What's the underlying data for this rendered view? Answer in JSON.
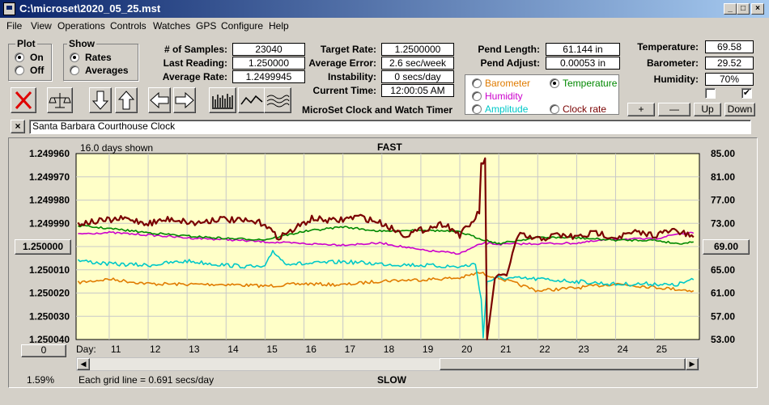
{
  "window": {
    "title": "C:\\microset\\2020_05_25.mst",
    "min": "_",
    "max": "□",
    "close": "×"
  },
  "menu": [
    "File",
    "View",
    "Operations",
    "Controls",
    "Watches",
    "GPS",
    "Configure",
    "Help"
  ],
  "plot_group": {
    "title": "Plot",
    "options": [
      "On",
      "Off"
    ]
  },
  "show_group": {
    "title": "Show",
    "options": [
      "Rates",
      "Averages"
    ]
  },
  "stats": {
    "samples_label": "# of Samples:",
    "samples": "23040",
    "last_label": "Last Reading:",
    "last": "1.250000",
    "avg_label": "Average Rate:",
    "avg": "1.2499945"
  },
  "target": {
    "rate_label": "Target Rate:",
    "rate": "1.2500000",
    "err_label": "Average Error:",
    "err": "2.6 sec/week",
    "inst_label": "Instability:",
    "inst": "0 secs/day",
    "time_label": "Current Time:",
    "time": "12:00:05 AM"
  },
  "app_caption": "MicroSet Clock and Watch Timer",
  "pendulum": {
    "len_label": "Pend Length:",
    "len": "61.144 in",
    "adj_label": "Pend Adjust:",
    "adj": "0.00053 in"
  },
  "sensors": {
    "temp_label": "Temperature:",
    "temp": "69.58",
    "baro_label": "Barometer:",
    "baro": "29.52",
    "hum_label": "Humidity:",
    "hum": "70%"
  },
  "channels": [
    {
      "label": "Barometer",
      "color": "#e07b00"
    },
    {
      "label": "Temperature",
      "color": "#008800",
      "selected": true
    },
    {
      "label": "Humidity",
      "color": "#cc00cc"
    },
    {
      "label": "Clock rate",
      "color": "#7a0000"
    },
    {
      "label": "Amplitude",
      "color": "#00c8c8"
    }
  ],
  "scale_buttons": [
    "+",
    "—",
    "Up",
    "Down"
  ],
  "close_x": "×",
  "watch_name": "Santa Barbara Courthouse Clock",
  "chart": {
    "days_shown": "16.0 days shown",
    "top_label": "FAST",
    "bottom_label": "SLOW",
    "grid_note": "Each grid line = 0.691 secs/day",
    "day_label": "Day:",
    "zoom_pct": "1.59%",
    "left_button": "1.250000",
    "right_button": "69.00",
    "bottom_button": "0"
  },
  "chart_data": {
    "type": "line",
    "x_label": "Day:",
    "x_ticks": [
      11,
      12,
      13,
      14,
      15,
      16,
      17,
      18,
      19,
      20,
      21,
      22,
      23,
      24,
      25
    ],
    "x_range": [
      10.15,
      26.15
    ],
    "y_left_ticks": [
      "1.249960",
      "1.249970",
      "1.249980",
      "1.249990",
      "1.250000",
      "1.250010",
      "1.250020",
      "1.250030",
      "1.250040"
    ],
    "y_left_range": [
      1.24996,
      1.25004
    ],
    "y_right_ticks": [
      "85.00",
      "81.00",
      "77.00",
      "73.00",
      "69.00",
      "65.00",
      "61.00",
      "57.00",
      "53.00"
    ],
    "y_right_range": [
      53,
      85
    ],
    "series": [
      {
        "name": "Clock rate",
        "color": "#7a0000",
        "axis": "left",
        "points": [
          [
            10.2,
            1.24999
          ],
          [
            10.8,
            1.249989
          ],
          [
            11.4,
            1.249988
          ],
          [
            12,
            1.24999
          ],
          [
            12.6,
            1.249988
          ],
          [
            13.2,
            1.24999
          ],
          [
            13.8,
            1.249988
          ],
          [
            14.4,
            1.249989
          ],
          [
            15,
            1.24999
          ],
          [
            15.3,
            1.249996
          ],
          [
            15.6,
            1.249994
          ],
          [
            16.2,
            1.249988
          ],
          [
            16.8,
            1.249989
          ],
          [
            17.4,
            1.249987
          ],
          [
            18,
            1.24999
          ],
          [
            18.6,
            1.249995
          ],
          [
            19,
            1.249993
          ],
          [
            19.6,
            1.24999
          ],
          [
            20,
            1.249995
          ],
          [
            20.3,
            1.24999
          ],
          [
            20.5,
            1.249985
          ],
          [
            20.55,
            1.249965
          ],
          [
            20.65,
            1.249962
          ],
          [
            20.7,
            1.25004
          ],
          [
            20.9,
            1.250014
          ],
          [
            21.2,
            1.250012
          ],
          [
            21.5,
            1.249995
          ],
          [
            22,
            1.249997
          ],
          [
            22.5,
            1.249995
          ],
          [
            23,
            1.249996
          ],
          [
            23.5,
            1.249994
          ],
          [
            24,
            1.249996
          ],
          [
            24.5,
            1.249994
          ],
          [
            25,
            1.249995
          ],
          [
            25.5,
            1.249993
          ],
          [
            26,
            1.249996
          ]
        ]
      },
      {
        "name": "Temperature",
        "color": "#008800",
        "axis": "right",
        "points": [
          [
            10.2,
            72.6
          ],
          [
            11,
            72.1
          ],
          [
            12,
            71.4
          ],
          [
            13,
            70.8
          ],
          [
            14,
            70.4
          ],
          [
            15,
            70.2
          ],
          [
            16,
            71.6
          ],
          [
            17,
            72.4
          ],
          [
            18,
            71.6
          ],
          [
            19,
            71.9
          ],
          [
            20,
            71.5
          ],
          [
            20.5,
            70.4
          ],
          [
            21,
            69.5
          ],
          [
            22,
            70.6
          ],
          [
            23,
            70.5
          ],
          [
            24,
            70.1
          ],
          [
            25,
            70.1
          ],
          [
            25.6,
            69.5
          ],
          [
            26,
            69.8
          ]
        ]
      },
      {
        "name": "Humidity",
        "color": "#cc00cc",
        "axis": "right",
        "points": [
          [
            10.2,
            71.2
          ],
          [
            11,
            71.4
          ],
          [
            12,
            71.0
          ],
          [
            13,
            70.5
          ],
          [
            14,
            70.2
          ],
          [
            15,
            69.8
          ],
          [
            16,
            69.5
          ],
          [
            17,
            69.3
          ],
          [
            18,
            69.6
          ],
          [
            19,
            68.4
          ],
          [
            20,
            67.8
          ],
          [
            20.6,
            69.6
          ],
          [
            21,
            69.4
          ],
          [
            22,
            69.5
          ],
          [
            23,
            69.6
          ],
          [
            24,
            70.3
          ],
          [
            25,
            70.3
          ],
          [
            25.6,
            71.2
          ],
          [
            26,
            71.3
          ]
        ]
      },
      {
        "name": "Amplitude",
        "color": "#00c8c8",
        "axis": "right",
        "points": [
          [
            10.2,
            66.6
          ],
          [
            11,
            66.0
          ],
          [
            12,
            65.8
          ],
          [
            13,
            66.5
          ],
          [
            14,
            65.8
          ],
          [
            15,
            65.4
          ],
          [
            15.2,
            68.3
          ],
          [
            15.5,
            66.2
          ],
          [
            16,
            66.0
          ],
          [
            17,
            66.4
          ],
          [
            18,
            66.0
          ],
          [
            19,
            65.8
          ],
          [
            20,
            65.5
          ],
          [
            20.4,
            66.0
          ],
          [
            20.55,
            60.0
          ],
          [
            20.6,
            53.3
          ],
          [
            20.7,
            63.0
          ],
          [
            21,
            63.6
          ],
          [
            22,
            63.4
          ],
          [
            23,
            63.0
          ],
          [
            24,
            62.5
          ],
          [
            25,
            62.6
          ],
          [
            25.5,
            62.3
          ],
          [
            26,
            63.3
          ]
        ]
      },
      {
        "name": "Barometer",
        "color": "#e07b00",
        "axis": "right",
        "points": [
          [
            10.2,
            62.8
          ],
          [
            11,
            63.4
          ],
          [
            12,
            62.6
          ],
          [
            13,
            62.5
          ],
          [
            14,
            62.5
          ],
          [
            15,
            62.2
          ],
          [
            16,
            62.6
          ],
          [
            17,
            62.4
          ],
          [
            18,
            63.1
          ],
          [
            19,
            63.3
          ],
          [
            20,
            63.6
          ],
          [
            20.5,
            64.5
          ],
          [
            21,
            63.6
          ],
          [
            22,
            61.4
          ],
          [
            23,
            61.9
          ],
          [
            24,
            62.6
          ],
          [
            25,
            62.0
          ],
          [
            26,
            61.4
          ]
        ]
      }
    ]
  }
}
